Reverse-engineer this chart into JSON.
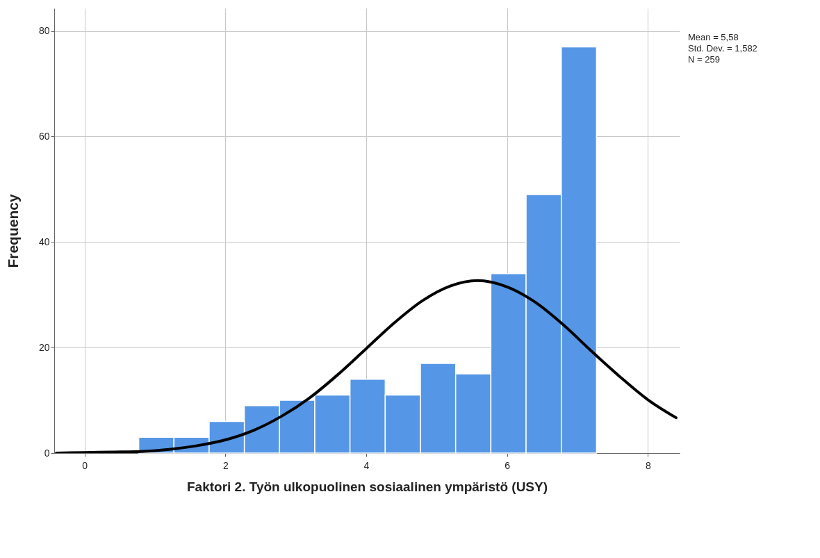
{
  "chart_data": {
    "type": "histogram",
    "xlabel": "Faktori 2. Työn ulkopuolinen sosiaalinen ympäristö (USY)",
    "ylabel": "Frequency",
    "bins": [
      0.77,
      1.27,
      1.77,
      2.27,
      2.77,
      3.27,
      3.77,
      4.27,
      4.77,
      5.27,
      5.77,
      6.27,
      6.77,
      7.27
    ],
    "values": [
      3,
      3,
      6,
      9,
      10,
      11,
      14,
      11,
      17,
      15,
      34,
      49,
      77
    ],
    "color": "#5596e6",
    "series": [
      {
        "type": "line",
        "color": "#000000",
        "x": [
          -0.4,
          0,
          0.4,
          0.8,
          1.2,
          1.6,
          2.0,
          2.4,
          2.8,
          3.2,
          3.6,
          4.0,
          4.4,
          4.8,
          5.2,
          5.58,
          6.0,
          6.4,
          6.8,
          7.2,
          7.6,
          8.0,
          8.4
        ],
        "values": [
          0,
          0.1,
          0.2,
          0.3,
          0.7,
          1.4,
          2.5,
          4.3,
          7.0,
          10.5,
          14.9,
          19.8,
          24.7,
          28.9,
          31.7,
          32.7,
          31.5,
          28.6,
          24.3,
          19.3,
          14.5,
          10.1,
          6.7
        ]
      }
    ],
    "xlim": [
      -0.43,
      8.45
    ],
    "xticks": [
      0,
      2,
      4,
      6,
      8
    ],
    "ylim": [
      0,
      84.3
    ],
    "yticks": [
      0,
      20,
      40,
      60,
      80
    ],
    "grid": true,
    "annotations": [
      "Mean = 5,58",
      "Std. Dev. = 1,582",
      "N = 259"
    ]
  }
}
